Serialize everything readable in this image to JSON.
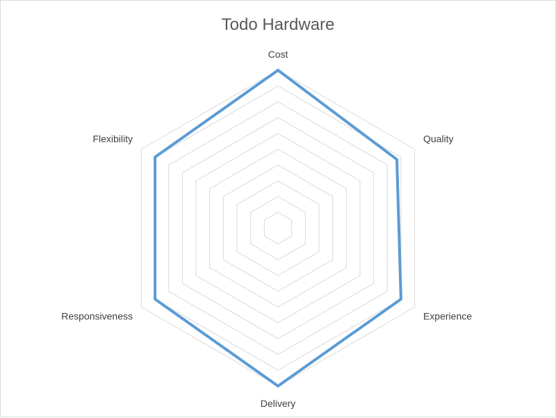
{
  "chart_data": {
    "type": "radar",
    "title": "Todo Hardware",
    "categories": [
      "Cost",
      "Quality",
      "Experience",
      "Delivery",
      "Responsiveness",
      "Flexibility"
    ],
    "series": [
      {
        "values": [
          1.0,
          0.87,
          0.9,
          1.0,
          0.9,
          0.9
        ]
      }
    ],
    "rlim": [
      0,
      1
    ],
    "grid_rings": 10,
    "grid": true,
    "legend": "none",
    "colors": {
      "series": "#5b9bd5",
      "grid": "#d9d9d9",
      "title": "#595959",
      "labels": "#404040"
    }
  }
}
